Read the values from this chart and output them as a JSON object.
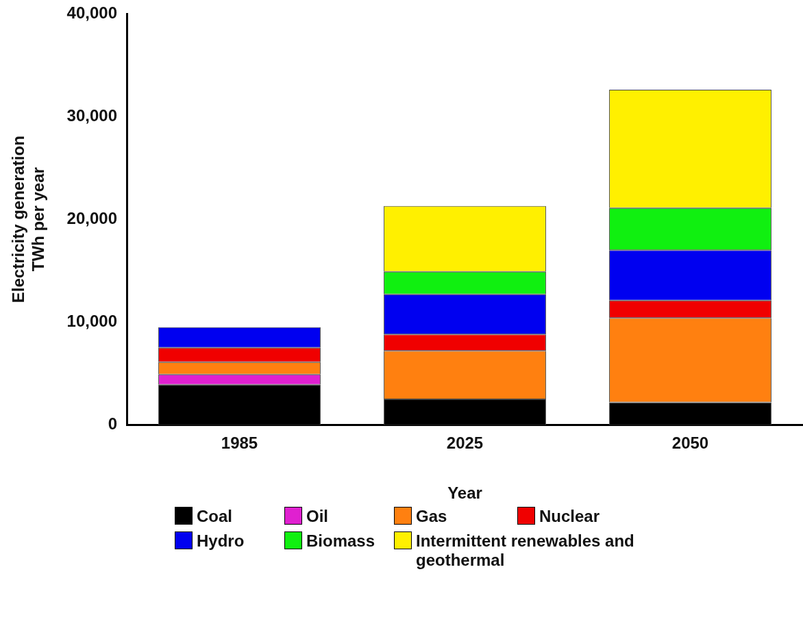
{
  "chart_data": {
    "type": "bar",
    "stacked": true,
    "xlabel": "Year",
    "ylabel": "Electricity generation\nTWh per year",
    "categories": [
      "1985",
      "2025",
      "2050"
    ],
    "series": [
      {
        "name": "Coal",
        "color": "#000000",
        "values": [
          3900,
          2500,
          2200
        ]
      },
      {
        "name": "Oil",
        "color": "#e020d0",
        "values": [
          1000,
          0,
          0
        ]
      },
      {
        "name": "Gas",
        "color": "#ff8010",
        "values": [
          1200,
          4700,
          8200
        ]
      },
      {
        "name": "Nuclear",
        "color": "#f00000",
        "values": [
          1400,
          1600,
          1700
        ]
      },
      {
        "name": "Hydro",
        "color": "#0000f0",
        "values": [
          2000,
          3900,
          4900
        ]
      },
      {
        "name": "Biomass",
        "color": "#10f010",
        "values": [
          0,
          2200,
          4100
        ]
      },
      {
        "name": "Intermittent renewables and geothermal",
        "color": "#fff000",
        "values": [
          0,
          6400,
          11500
        ]
      }
    ],
    "ylim": [
      0,
      40000
    ],
    "yticks": [
      {
        "value": 0,
        "label": "0"
      },
      {
        "value": 10000,
        "label": "10,000"
      },
      {
        "value": 20000,
        "label": "20,000"
      },
      {
        "value": 30000,
        "label": "30,000"
      },
      {
        "value": 40000,
        "label": "40,000"
      }
    ],
    "grid": false,
    "legend": "bottom"
  }
}
